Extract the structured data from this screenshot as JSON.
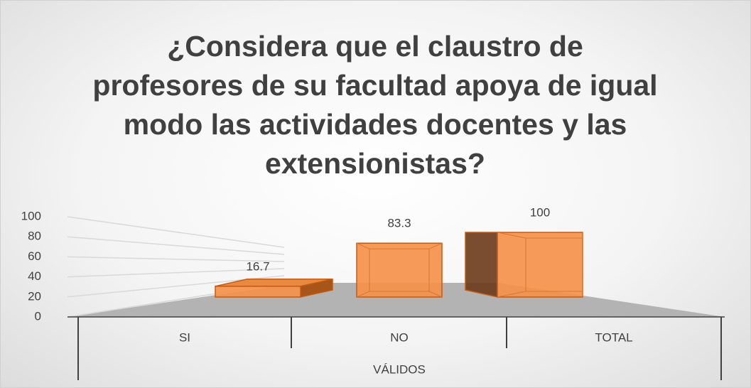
{
  "chart_data": {
    "type": "bar3d",
    "title": "¿Considera que el claustro de profesores de su facultad apoya de igual modo las actividades docentes y las extensionistas?",
    "categories": [
      "SI",
      "NO",
      "TOTAL"
    ],
    "values": [
      16.7,
      83.3,
      100
    ],
    "color": "#f4914a",
    "x_label": "VÁLIDOS",
    "ylim": [
      0,
      100
    ],
    "yticks": [
      0,
      20,
      40,
      60,
      80,
      100
    ],
    "grid": true
  }
}
